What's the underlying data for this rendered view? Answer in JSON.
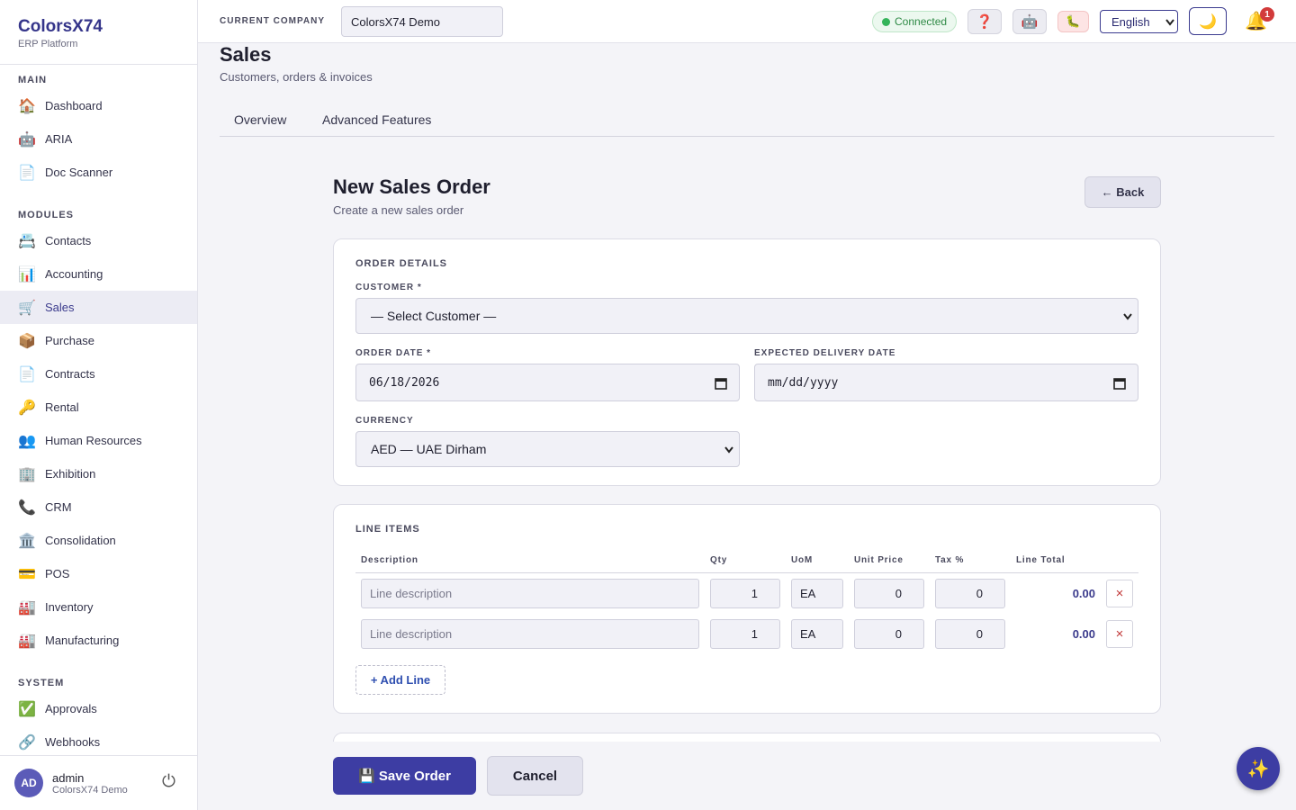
{
  "sidebar": {
    "brand": "ColorsX74",
    "tagline": "ERP Platform",
    "sections": [
      {
        "title": "MAIN",
        "items": [
          {
            "icon": "🏠",
            "label": "Dashboard"
          },
          {
            "icon": "🤖",
            "label": "ARIA"
          },
          {
            "icon": "📄",
            "label": "Doc Scanner"
          }
        ]
      },
      {
        "title": "MODULES",
        "items": [
          {
            "icon": "📇",
            "label": "Contacts"
          },
          {
            "icon": "📊",
            "label": "Accounting"
          },
          {
            "icon": "🛒",
            "label": "Sales",
            "active": true
          },
          {
            "icon": "📦",
            "label": "Purchase"
          },
          {
            "icon": "📄",
            "label": "Contracts"
          },
          {
            "icon": "🔑",
            "label": "Rental"
          },
          {
            "icon": "👥",
            "label": "Human Resources"
          },
          {
            "icon": "🏢",
            "label": "Exhibition"
          },
          {
            "icon": "📞",
            "label": "CRM"
          },
          {
            "icon": "🏛️",
            "label": "Consolidation"
          },
          {
            "icon": "💳",
            "label": "POS"
          },
          {
            "icon": "🏭",
            "label": "Inventory"
          },
          {
            "icon": "🏭",
            "label": "Manufacturing"
          }
        ]
      },
      {
        "title": "SYSTEM",
        "items": [
          {
            "icon": "✅",
            "label": "Approvals"
          },
          {
            "icon": "🔗",
            "label": "Webhooks"
          }
        ]
      }
    ],
    "user": {
      "initials": "AD",
      "name": "admin",
      "company": "ColorsX74 Demo",
      "logout_icon": "⏻"
    }
  },
  "topbar": {
    "company_label": "CURRENT COMPANY",
    "company": "ColorsX74 Demo",
    "status": "Connected",
    "help_icon": "❓",
    "bot_icon": "🤖",
    "bug_icon": "🐛",
    "language": "English",
    "theme_icon": "🌙",
    "bell_icon": "🔔",
    "notifications": 1
  },
  "page": {
    "title": "Sales",
    "subtitle": "Customers, orders & invoices",
    "tabs": [
      "Overview",
      "Advanced Features"
    ]
  },
  "form": {
    "title": "New Sales Order",
    "subtitle": "Create a new sales order",
    "back": "← Back",
    "order_details": {
      "heading": "ORDER DETAILS",
      "customer_label": "CUSTOMER *",
      "customer": "— Select Customer —",
      "order_date_label": "ORDER DATE *",
      "order_date": "06/18/2026",
      "delivery_label": "EXPECTED DELIVERY DATE",
      "delivery_placeholder": "mm/dd/yyyy",
      "currency_label": "CURRENCY",
      "currency": "AED — UAE Dirham"
    },
    "line_items": {
      "heading": "LINE ITEMS",
      "columns": [
        "Description",
        "Qty",
        "UoM",
        "Unit Price",
        "Tax %",
        "Line Total"
      ],
      "rows": [
        {
          "description": "Line description",
          "qty": 1,
          "uom": "EA",
          "unit_price": 0,
          "tax": 0,
          "total": "0.00",
          "remove": "×"
        },
        {
          "description": "Line description",
          "qty": 1,
          "uom": "EA",
          "unit_price": 0,
          "tax": 0,
          "total": "0.00",
          "remove": "×"
        }
      ],
      "add": "+ Add Line"
    },
    "actions": {
      "save": "💾 Save Order",
      "cancel": "Cancel"
    }
  },
  "assistant_icon": "✨"
}
